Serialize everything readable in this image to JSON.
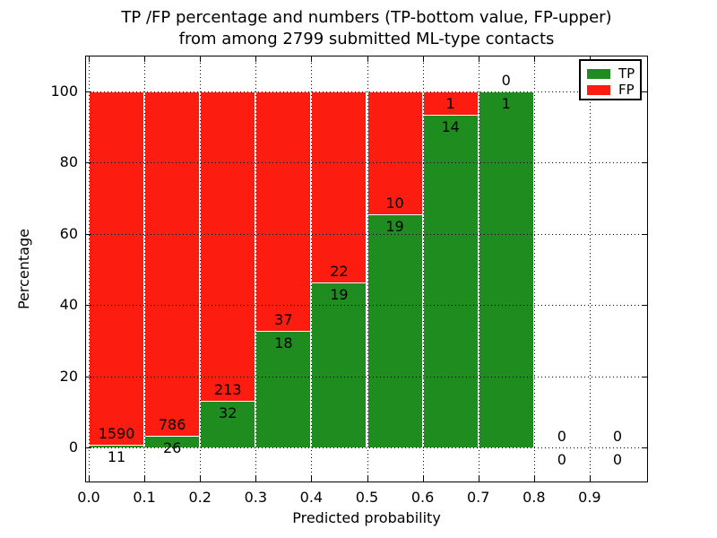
{
  "title": {
    "line1": "TP /FP percentage and numbers (TP-bottom value, FP-upper)",
    "line2": "from among 2799 submitted ML-type contacts"
  },
  "axes": {
    "xlabel": "Predicted probability",
    "ylabel": "Percentage",
    "x_ticks": [
      "0.0",
      "0.1",
      "0.2",
      "0.3",
      "0.4",
      "0.5",
      "0.6",
      "0.7",
      "0.8",
      "0.9"
    ],
    "y_ticks": [
      "0",
      "20",
      "40",
      "60",
      "80",
      "100"
    ],
    "y_tick_values": [
      0,
      20,
      40,
      60,
      80,
      100
    ],
    "xlim": [
      0.0,
      1.0
    ],
    "ylim": [
      -10,
      110
    ],
    "grid": "dotted"
  },
  "legend": {
    "items": [
      {
        "label": "TP",
        "color": "#1f8c1f"
      },
      {
        "label": "FP",
        "color": "#fc1d10"
      }
    ]
  },
  "chart_data": {
    "type": "bar",
    "stacked": true,
    "title": "TP /FP percentage and numbers (TP-bottom value, FP-upper) from among 2799 submitted ML-type contacts",
    "xlabel": "Predicted probability",
    "ylabel": "Percentage",
    "total_contacts": 2799,
    "bin_width": 0.1,
    "categories": [
      "0.0-0.1",
      "0.1-0.2",
      "0.2-0.3",
      "0.3-0.4",
      "0.4-0.5",
      "0.5-0.6",
      "0.6-0.7",
      "0.7-0.8",
      "0.8-0.9",
      "0.9-1.0"
    ],
    "x_starts": [
      0.0,
      0.1,
      0.2,
      0.3,
      0.4,
      0.5,
      0.6,
      0.7,
      0.8,
      0.9
    ],
    "series": [
      {
        "name": "TP",
        "color": "#1f8c1f",
        "counts": [
          11,
          26,
          32,
          18,
          19,
          19,
          14,
          1,
          0,
          0
        ],
        "percent": [
          0.69,
          3.2,
          13.06,
          32.73,
          46.34,
          65.52,
          93.33,
          100.0,
          0.0,
          0.0
        ]
      },
      {
        "name": "FP",
        "color": "#fc1d10",
        "counts": [
          1590,
          786,
          213,
          37,
          22,
          10,
          1,
          0,
          0,
          0
        ],
        "percent": [
          99.31,
          96.8,
          86.94,
          67.27,
          53.66,
          34.48,
          6.67,
          0.0,
          0.0,
          0.0
        ]
      }
    ]
  }
}
